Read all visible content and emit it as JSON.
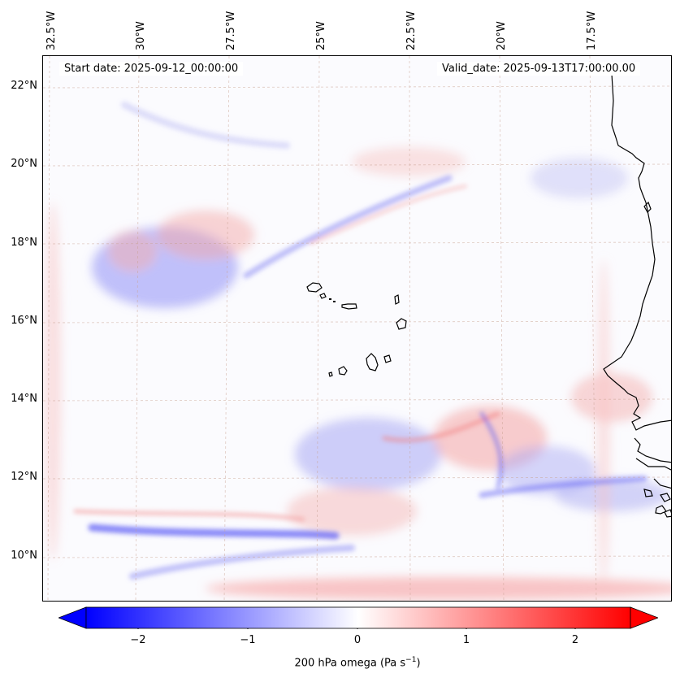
{
  "map": {
    "start_date_text": "Start date: 2025-09-12_00:00:00",
    "valid_date_text": "Valid_date: 2025-09-13T17:00:00.00",
    "longitude_labels": [
      "32.5°W",
      "30°W",
      "27.5°W",
      "25°W",
      "22.5°W",
      "20°W",
      "17.5°W"
    ],
    "latitude_labels": [
      "22°N",
      "20°N",
      "18°N",
      "16°N",
      "14°N",
      "12°N",
      "10°N"
    ],
    "variable": "200 hPa omega",
    "colors": {
      "negative": "#0000ff",
      "zero": "#ffffff",
      "positive": "#ff0000",
      "coastline": "#000000",
      "gridline": "#c8a090"
    }
  },
  "colorbar": {
    "label_main": "200 hPa omega (Pa s",
    "label_exp": "−1",
    "label_end": ")",
    "ticks": [
      "−2",
      "−1",
      "0",
      "1",
      "2"
    ],
    "range": [
      -2.75,
      2.75
    ]
  }
}
